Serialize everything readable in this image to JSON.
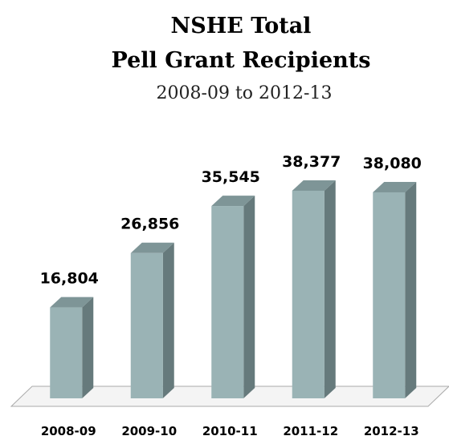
{
  "chart_data": {
    "type": "bar",
    "title_lines": [
      "NSHE Total",
      "Pell Grant Recipients"
    ],
    "subtitle": "2008-09 to 2012-13",
    "categories": [
      "2008-09",
      "2009-10",
      "2010-11",
      "2011-12",
      "2012-13"
    ],
    "values": [
      16804,
      26856,
      35545,
      38377,
      38080
    ],
    "value_labels": [
      "16,804",
      "26,856",
      "35,545",
      "38,377",
      "38,080"
    ],
    "ylim": [
      0,
      40000
    ],
    "grid": false,
    "legend": "none",
    "style": "3d-column"
  },
  "colors": {
    "bar_front": "#9ab3b5",
    "bar_side": "#667a7c",
    "bar_top": "#7e9597",
    "floor": "#aaaaaa",
    "text": "#000000"
  }
}
